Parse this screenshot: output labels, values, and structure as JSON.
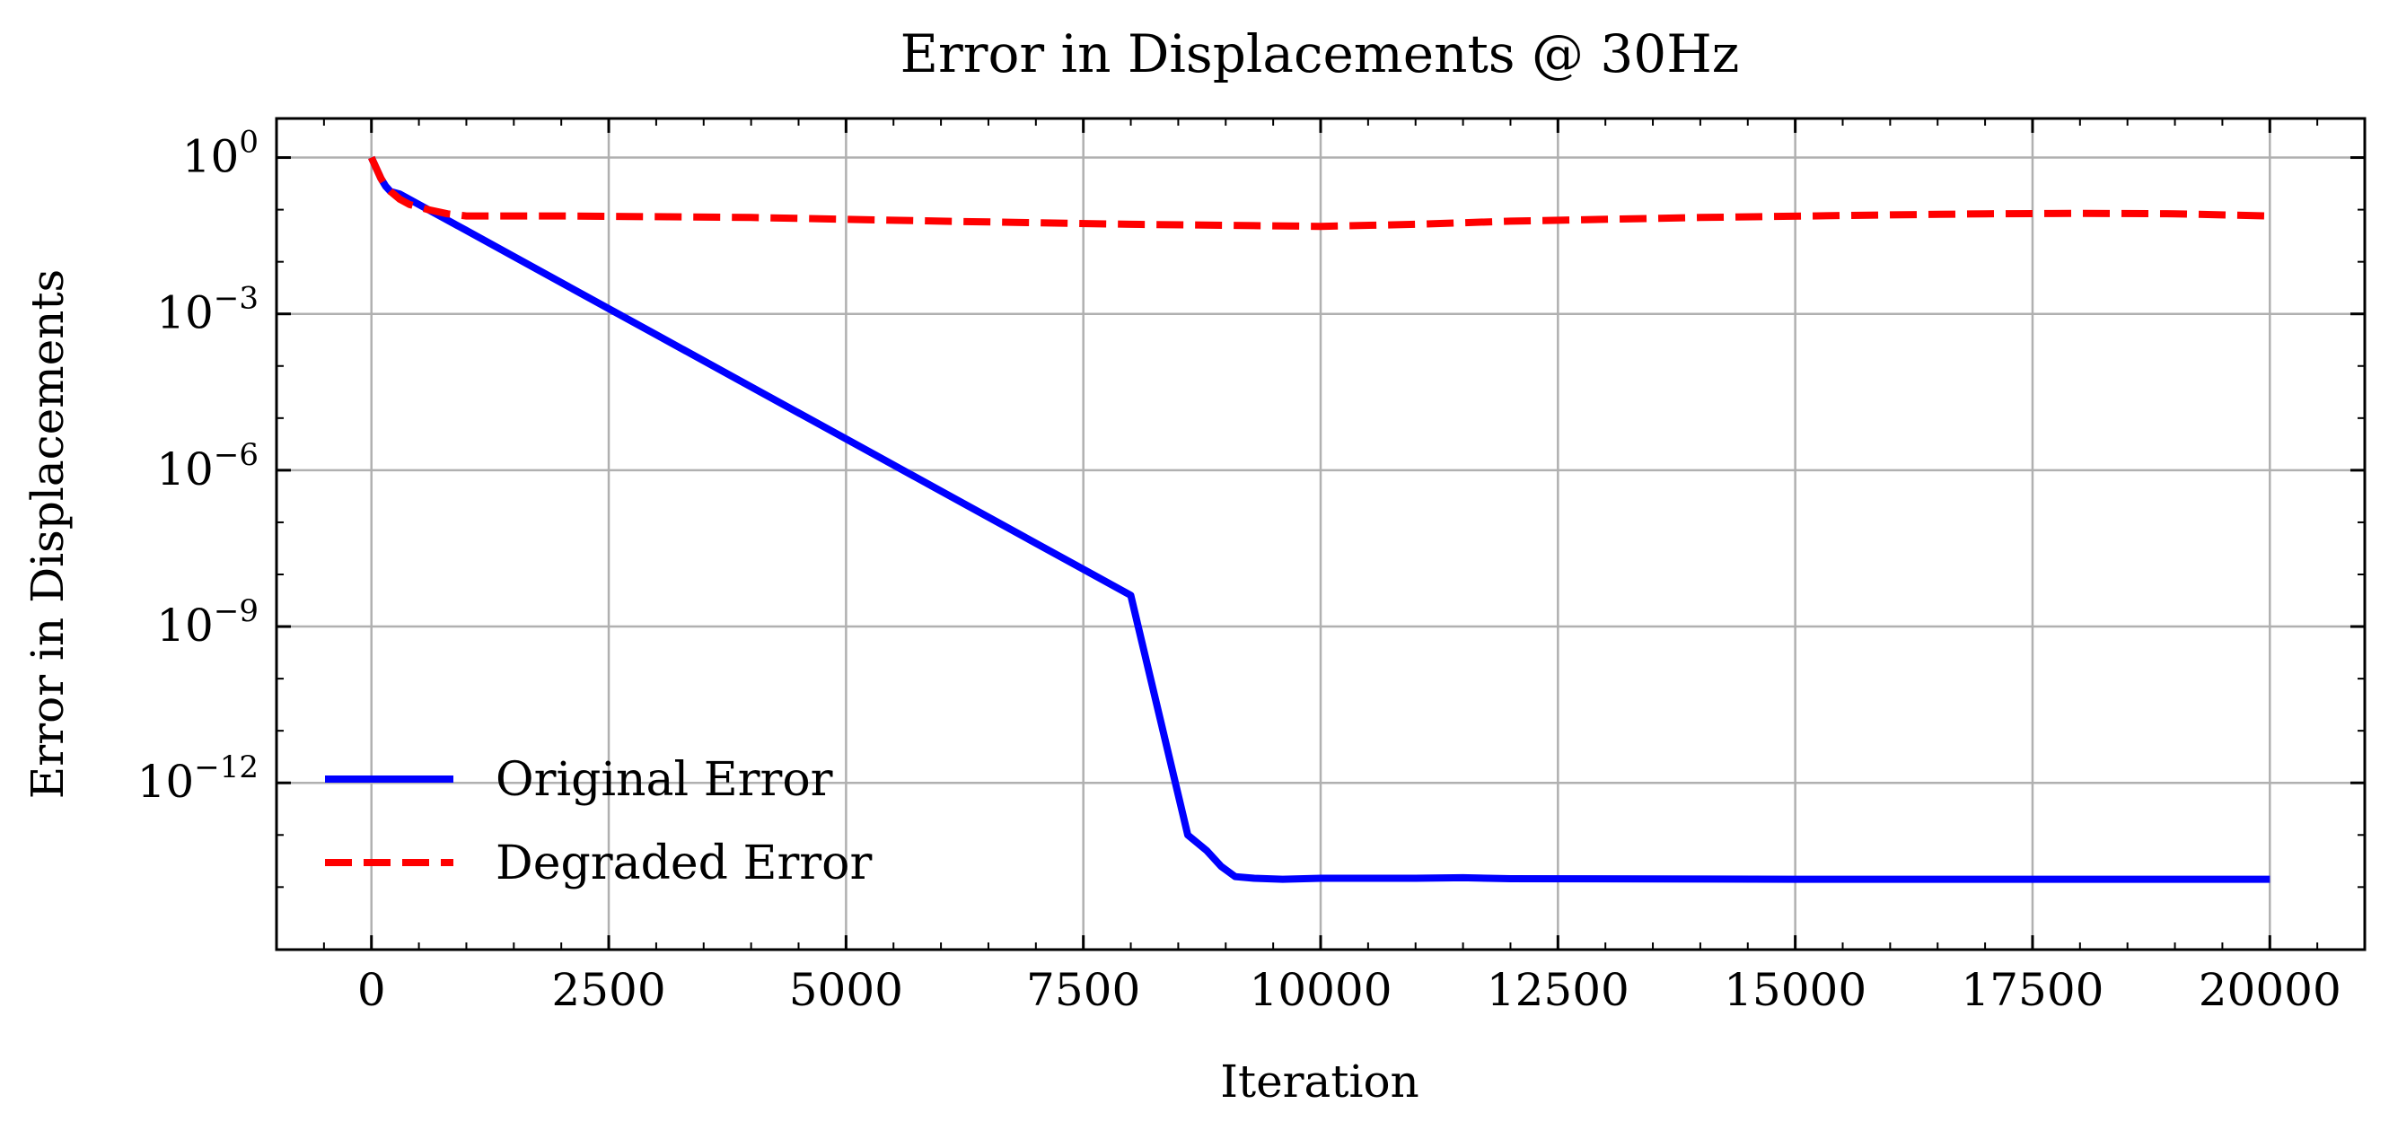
{
  "chart_data": {
    "type": "line",
    "title": "Error in Displacements @ 30Hz",
    "xlabel": "Iteration",
    "ylabel": "Error in Displacements",
    "x_scale": "linear",
    "y_scale": "log",
    "xlim": [
      -1000,
      21000
    ],
    "ylim_log10": [
      -15.2,
      0.75
    ],
    "x_ticks": [
      0,
      2500,
      5000,
      7500,
      10000,
      12500,
      15000,
      17500,
      20000
    ],
    "x_tick_labels": [
      "0",
      "2500",
      "5000",
      "7500",
      "10000",
      "12500",
      "15000",
      "17500",
      "20000"
    ],
    "y_ticks_log10": [
      0,
      -3,
      -6,
      -9,
      -12
    ],
    "y_tick_labels": [
      {
        "base": "10",
        "exp": "0"
      },
      {
        "base": "10",
        "exp": "−3"
      },
      {
        "base": "10",
        "exp": "−6"
      },
      {
        "base": "10",
        "exp": "−9"
      },
      {
        "base": "10",
        "exp": "−12"
      }
    ],
    "grid": true,
    "legend_position": "lower-left",
    "series": [
      {
        "name": "Original Error",
        "color": "#0000ff",
        "style": "solid",
        "x": [
          0,
          50,
          100,
          150,
          200,
          300,
          1000,
          2000,
          3000,
          4000,
          5000,
          6000,
          7000,
          8000,
          8600,
          8800,
          8950,
          9100,
          9300,
          9600,
          10000,
          11000,
          11500,
          12000,
          15000,
          18000,
          20000
        ],
        "y_log10": [
          0,
          -0.2,
          -0.4,
          -0.55,
          -0.65,
          -0.7,
          -1.4,
          -2.4,
          -3.4,
          -4.4,
          -5.4,
          -6.4,
          -7.4,
          -8.4,
          -13.0,
          -13.3,
          -13.6,
          -13.8,
          -13.83,
          -13.85,
          -13.83,
          -13.83,
          -13.82,
          -13.84,
          -13.85,
          -13.85,
          -13.85
        ]
      },
      {
        "name": "Degraded Error",
        "color": "#ff0000",
        "style": "dashed",
        "x": [
          0,
          50,
          100,
          150,
          200,
          300,
          400,
          600,
          800,
          1000,
          2000,
          4000,
          6000,
          8000,
          9000,
          10000,
          11000,
          12000,
          14000,
          16000,
          17000,
          18000,
          19000,
          20000
        ],
        "y_log10": [
          0,
          -0.2,
          -0.4,
          -0.55,
          -0.65,
          -0.8,
          -0.9,
          -1.0,
          -1.08,
          -1.12,
          -1.12,
          -1.15,
          -1.22,
          -1.28,
          -1.3,
          -1.32,
          -1.28,
          -1.22,
          -1.15,
          -1.1,
          -1.08,
          -1.07,
          -1.08,
          -1.12
        ]
      }
    ]
  }
}
